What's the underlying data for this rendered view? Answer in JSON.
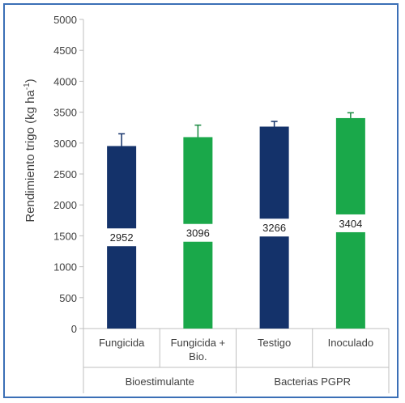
{
  "chart_data": {
    "type": "bar",
    "title": "",
    "ylabel": "Rendimiento trigo (kg ha",
    "ylabel_superscript": "-1",
    "ylabel_close": ")",
    "ylim": [
      0,
      5000
    ],
    "yticks": [
      "0",
      "500",
      "1000",
      "1500",
      "2000",
      "2500",
      "3000",
      "3500",
      "4000",
      "4500",
      "5000"
    ],
    "categories": [
      "Fungicida",
      "Fungicida + Bio.",
      "Testigo",
      "Inoculado"
    ],
    "category_lines": [
      [
        "Fungicida"
      ],
      [
        "Fungicida +",
        "Bio."
      ],
      [
        "Testigo"
      ],
      [
        "Inoculado"
      ]
    ],
    "values": [
      2952,
      3096,
      3266,
      3404
    ],
    "value_labels": [
      "2952",
      "3096",
      "3266",
      "3404"
    ],
    "error_upper": [
      3150,
      3290,
      3350,
      3490
    ],
    "bar_colors": [
      "#14326a",
      "#1aa84a",
      "#14326a",
      "#1aa84a"
    ],
    "groups": [
      {
        "label": "Bioestimulante",
        "categories": [
          "Fungicida",
          "Fungicida + Bio."
        ]
      },
      {
        "label": "Bacterias PGPR",
        "categories": [
          "Testigo",
          "Inoculado"
        ]
      }
    ],
    "grid": false,
    "legend": "none"
  },
  "colors": {
    "border": "#3b6fb6",
    "dark_bar": "#14326a",
    "green_bar": "#1aa84a"
  }
}
